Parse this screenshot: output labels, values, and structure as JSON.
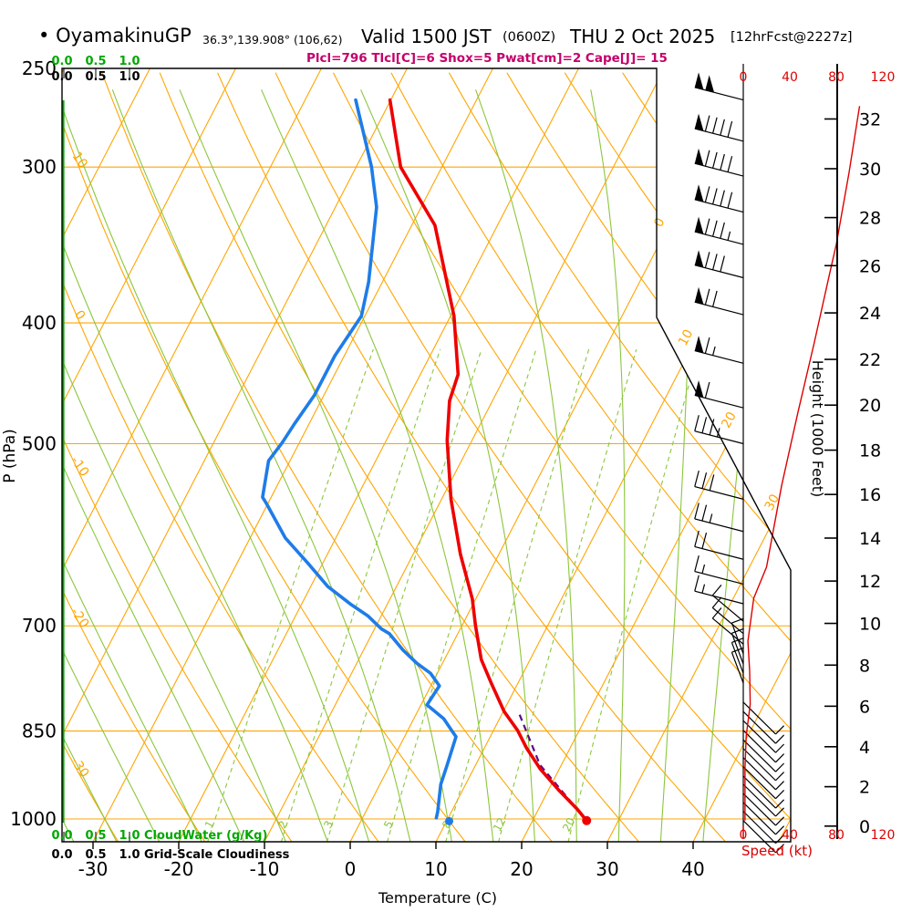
{
  "header": {
    "bullet": "•",
    "station": "OyamakinuGP",
    "coords": "36.3°,139.908° (106,62)",
    "valid": "Valid 1500 JST",
    "valid_sub": "(0600Z)",
    "date": "THU 2 Oct 2025",
    "fcst": "[12hrFcst@2227z]",
    "stats": "Plcl=796 Tlcl[C]=6 Shox=5 Pwat[cm]=2 Cape[J]= 15"
  },
  "colors": {
    "frame": "#000000",
    "orange": "#FFA500",
    "moist_green": "#8CC63C",
    "cloudwater_green": "#00A800",
    "temp_red": "#EE0000",
    "dewpoint_blue": "#1E7CE8",
    "speed_red": "#DD0000",
    "stats_magenta": "#C4006A",
    "parcel_purple": "#5C0A8C"
  },
  "axes": {
    "pressure": {
      "label": "P (hPa)",
      "ticks": [
        250,
        300,
        400,
        500,
        700,
        850,
        1000
      ]
    },
    "temperature": {
      "label": "Temperature (C)",
      "ticks": [
        -30,
        -20,
        -10,
        0,
        10,
        20,
        30,
        40
      ]
    },
    "speed": {
      "label": "Speed (kt)",
      "ticks": [
        0,
        40,
        80,
        120
      ]
    },
    "height": {
      "label": "Height (1000 Feet)",
      "ticks": [
        0,
        2,
        4,
        6,
        8,
        10,
        12,
        14,
        16,
        18,
        20,
        22,
        24,
        26,
        28,
        30,
        32
      ]
    },
    "cloudwater": {
      "label": "CloudWater (g/Kg)",
      "ticks": [
        "0.0",
        "0.5",
        "1.0"
      ]
    },
    "cloudiness": {
      "label": "Grid-Scale Cloudiness",
      "ticks": [
        "0.0",
        "0.5",
        "1.0"
      ]
    }
  },
  "chart_data": {
    "type": "skew-t-log-p-sounding",
    "title": "OyamakinuGP sounding, valid 1500 JST (0600Z) THU 2 Oct 2025",
    "grid": {
      "pressure_lines": [
        300,
        400,
        500,
        700,
        850,
        1000
      ],
      "isotherms": {
        "from": -100,
        "to": 50,
        "step": 10
      },
      "dry_adiabats": {
        "from": -30,
        "to": 120,
        "step": 10
      },
      "moist_adiabats": {
        "from": -40,
        "to": 40,
        "step": 5
      },
      "mixing_ratio_g_kg": [
        1,
        2,
        3,
        5,
        8,
        12,
        20
      ],
      "isotherm_labels": [
        0,
        10,
        20,
        30
      ],
      "dry_adiabat_labels": [
        10,
        0,
        -10,
        -20,
        -30
      ]
    },
    "temperature_profile": [
      [
        265,
        -40.1
      ],
      [
        300,
        -34.8
      ],
      [
        334,
        -27.3
      ],
      [
        395,
        -19.6
      ],
      [
        440,
        -15.6
      ],
      [
        462,
        -15.0
      ],
      [
        497,
        -12.9
      ],
      [
        554,
        -8.9
      ],
      [
        613,
        -4.5
      ],
      [
        666,
        -0.4
      ],
      [
        700,
        1.6
      ],
      [
        745,
        4.3
      ],
      [
        777,
        6.8
      ],
      [
        820,
        10.1
      ],
      [
        849,
        12.8
      ],
      [
        877,
        14.9
      ],
      [
        912,
        17.8
      ],
      [
        949,
        21.3
      ],
      [
        983,
        24.6
      ],
      [
        1003,
        26.3
      ]
    ],
    "dewpoint_profile": [
      [
        265,
        -44.1
      ],
      [
        300,
        -38.2
      ],
      [
        323,
        -35.2
      ],
      [
        371,
        -31.6
      ],
      [
        395,
        -30.4
      ],
      [
        425,
        -31.1
      ],
      [
        457,
        -31.1
      ],
      [
        482,
        -31.7
      ],
      [
        499,
        -32.0
      ],
      [
        516,
        -32.5
      ],
      [
        552,
        -31.0
      ],
      [
        559,
        -30.1
      ],
      [
        595,
        -25.9
      ],
      [
        623,
        -21.8
      ],
      [
        651,
        -18.0
      ],
      [
        673,
        -14.2
      ],
      [
        687,
        -11.6
      ],
      [
        704,
        -9.2
      ],
      [
        710,
        -8.0
      ],
      [
        732,
        -5.4
      ],
      [
        750,
        -3.0
      ],
      [
        764,
        -0.8
      ],
      [
        782,
        1.0
      ],
      [
        810,
        0.7
      ],
      [
        831,
        3.5
      ],
      [
        849,
        5.1
      ],
      [
        859,
        6.0
      ],
      [
        907,
        6.7
      ],
      [
        938,
        7.1
      ],
      [
        987,
        8.4
      ],
      [
        998,
        8.6
      ]
    ],
    "surface_temperature_point": [
      1003,
      26.3
    ],
    "surface_dewpoint_point": [
      1004,
      10.3
    ],
    "parcel_path": [
      [
        1003,
        26.3
      ],
      [
        905,
        17.5
      ],
      [
        822,
        11.9
      ]
    ],
    "wind_speed_profile": [
      [
        1003,
        1.5
      ],
      [
        965,
        1.5
      ],
      [
        910,
        1.5
      ],
      [
        858,
        2.5
      ],
      [
        809,
        6
      ],
      [
        761,
        5.5
      ],
      [
        720,
        4
      ],
      [
        703,
        5.5
      ],
      [
        665,
        9
      ],
      [
        628,
        20
      ],
      [
        540,
        33
      ],
      [
        472,
        47
      ],
      [
        415,
        61
      ],
      [
        366,
        74
      ],
      [
        346,
        80
      ],
      [
        303,
        91
      ],
      [
        268,
        100
      ]
    ],
    "wind_barbs": [
      [
        265,
        100,
        0
      ],
      [
        286,
        90,
        0
      ],
      [
        305,
        90,
        0
      ],
      [
        326,
        90,
        0
      ],
      [
        346,
        85,
        0
      ],
      [
        368,
        80,
        0
      ],
      [
        394,
        70,
        0
      ],
      [
        431,
        65,
        0
      ],
      [
        468,
        60,
        0
      ],
      [
        500,
        35,
        0
      ],
      [
        554,
        30,
        0
      ],
      [
        588,
        25,
        0
      ],
      [
        619,
        20,
        0
      ],
      [
        648,
        15,
        0
      ],
      [
        672,
        15,
        0
      ],
      [
        694,
        10,
        1
      ],
      [
        710,
        10,
        1
      ],
      [
        724,
        10,
        1
      ],
      [
        737,
        10,
        2
      ],
      [
        751,
        10,
        2
      ],
      [
        764,
        10,
        2
      ],
      [
        778,
        10,
        2
      ],
      [
        806,
        10,
        3
      ],
      [
        820,
        10,
        3
      ],
      [
        834,
        10,
        3
      ],
      [
        849,
        10,
        3
      ],
      [
        864,
        10,
        3
      ],
      [
        878,
        10,
        3
      ],
      [
        893,
        10,
        3
      ],
      [
        908,
        10,
        3
      ],
      [
        924,
        10,
        3
      ],
      [
        938,
        10,
        3
      ],
      [
        954,
        10,
        3
      ],
      [
        970,
        10,
        3
      ],
      [
        986,
        10,
        3
      ],
      [
        1003,
        10,
        3
      ]
    ]
  }
}
